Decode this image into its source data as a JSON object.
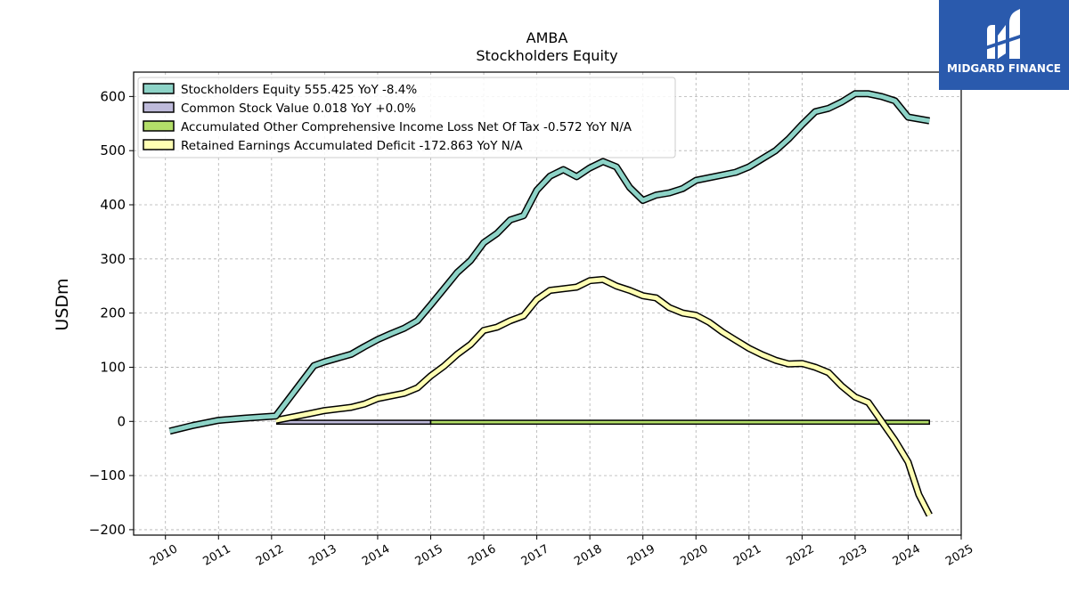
{
  "brand": {
    "name": "MIDGARD FINANCE",
    "bg_color": "#2a5aad"
  },
  "chart_data": {
    "type": "line",
    "title": "AMBA",
    "subtitle": "Stockholders  Equity",
    "ylabel": "USDm",
    "xlabel": "",
    "grid": true,
    "legend_position": "top-left",
    "xlim": [
      2009.4,
      2025.0
    ],
    "ylim": [
      -210,
      645
    ],
    "x_ticks": [
      2010,
      2011,
      2012,
      2013,
      2014,
      2015,
      2016,
      2017,
      2018,
      2019,
      2020,
      2021,
      2022,
      2023,
      2024,
      2025
    ],
    "x_tick_labels": [
      "2010",
      "2011",
      "2012",
      "2013",
      "2014",
      "2015",
      "2016",
      "2017",
      "2018",
      "2019",
      "2020",
      "2021",
      "2022",
      "2023",
      "2024",
      "2025"
    ],
    "y_ticks": [
      -200,
      -100,
      0,
      100,
      200,
      300,
      400,
      500,
      600
    ],
    "y_tick_labels": [
      "−200",
      "−100",
      "0",
      "100",
      "200",
      "300",
      "400",
      "500",
      "600"
    ],
    "series": [
      {
        "name": "Stockholders Equity  555.425 YoY -8.4%",
        "color": "#8dd3c7",
        "points": [
          [
            2010.08,
            -18
          ],
          [
            2010.5,
            -8
          ],
          [
            2011.0,
            2
          ],
          [
            2011.5,
            6
          ],
          [
            2012.08,
            10
          ],
          [
            2012.8,
            103
          ],
          [
            2013.0,
            110
          ],
          [
            2013.25,
            117
          ],
          [
            2013.5,
            124
          ],
          [
            2013.75,
            138
          ],
          [
            2014.0,
            151
          ],
          [
            2014.25,
            162
          ],
          [
            2014.5,
            172
          ],
          [
            2014.75,
            186
          ],
          [
            2015.0,
            215
          ],
          [
            2015.25,
            245
          ],
          [
            2015.5,
            275
          ],
          [
            2015.75,
            297
          ],
          [
            2016.0,
            330
          ],
          [
            2016.25,
            347
          ],
          [
            2016.5,
            372
          ],
          [
            2016.75,
            380
          ],
          [
            2017.0,
            427
          ],
          [
            2017.25,
            453
          ],
          [
            2017.5,
            465
          ],
          [
            2017.75,
            452
          ],
          [
            2018.0,
            468
          ],
          [
            2018.25,
            480
          ],
          [
            2018.5,
            470
          ],
          [
            2018.75,
            432
          ],
          [
            2019.0,
            408
          ],
          [
            2019.25,
            418
          ],
          [
            2019.5,
            422
          ],
          [
            2019.75,
            430
          ],
          [
            2020.0,
            445
          ],
          [
            2020.25,
            450
          ],
          [
            2020.5,
            455
          ],
          [
            2020.75,
            460
          ],
          [
            2021.0,
            470
          ],
          [
            2021.25,
            485
          ],
          [
            2021.5,
            500
          ],
          [
            2021.75,
            522
          ],
          [
            2022.0,
            548
          ],
          [
            2022.25,
            572
          ],
          [
            2022.5,
            578
          ],
          [
            2022.75,
            590
          ],
          [
            2023.0,
            605
          ],
          [
            2023.25,
            605
          ],
          [
            2023.5,
            600
          ],
          [
            2023.75,
            592
          ],
          [
            2024.0,
            562
          ],
          [
            2024.4,
            555
          ]
        ]
      },
      {
        "name": "Common Stock Value  0.018 YoY +0.0%",
        "color": "#bebada",
        "band": [
          2012.1,
          2015.0
        ]
      },
      {
        "name": "Accumulated Other Comprehensive Income Loss Net Of Tax  -0.572 YoY N/A",
        "color": "#b3de69",
        "band": [
          2015.0,
          2024.4
        ]
      },
      {
        "name": "Retained Earnings Accumulated Deficit  -172.863 YoY N/A",
        "color": "#ffffb3",
        "points": [
          [
            2012.08,
            2
          ],
          [
            2012.5,
            10
          ],
          [
            2012.75,
            15
          ],
          [
            2013.0,
            20
          ],
          [
            2013.25,
            23
          ],
          [
            2013.5,
            26
          ],
          [
            2013.75,
            32
          ],
          [
            2014.0,
            42
          ],
          [
            2014.25,
            47
          ],
          [
            2014.5,
            52
          ],
          [
            2014.75,
            62
          ],
          [
            2015.0,
            84
          ],
          [
            2015.25,
            102
          ],
          [
            2015.5,
            124
          ],
          [
            2015.75,
            142
          ],
          [
            2016.0,
            168
          ],
          [
            2016.25,
            174
          ],
          [
            2016.5,
            186
          ],
          [
            2016.75,
            195
          ],
          [
            2017.0,
            225
          ],
          [
            2017.25,
            242
          ],
          [
            2017.5,
            245
          ],
          [
            2017.75,
            248
          ],
          [
            2018.0,
            260
          ],
          [
            2018.25,
            262
          ],
          [
            2018.5,
            250
          ],
          [
            2018.75,
            242
          ],
          [
            2019.0,
            232
          ],
          [
            2019.25,
            228
          ],
          [
            2019.5,
            210
          ],
          [
            2019.75,
            200
          ],
          [
            2020.0,
            196
          ],
          [
            2020.25,
            183
          ],
          [
            2020.5,
            165
          ],
          [
            2020.75,
            150
          ],
          [
            2021.0,
            135
          ],
          [
            2021.25,
            123
          ],
          [
            2021.5,
            113
          ],
          [
            2021.75,
            106
          ],
          [
            2022.0,
            107
          ],
          [
            2022.25,
            100
          ],
          [
            2022.5,
            90
          ],
          [
            2022.75,
            65
          ],
          [
            2023.0,
            45
          ],
          [
            2023.25,
            35
          ],
          [
            2023.5,
            0
          ],
          [
            2023.75,
            -35
          ],
          [
            2024.0,
            -75
          ],
          [
            2024.2,
            -135
          ],
          [
            2024.4,
            -173
          ]
        ]
      }
    ]
  }
}
